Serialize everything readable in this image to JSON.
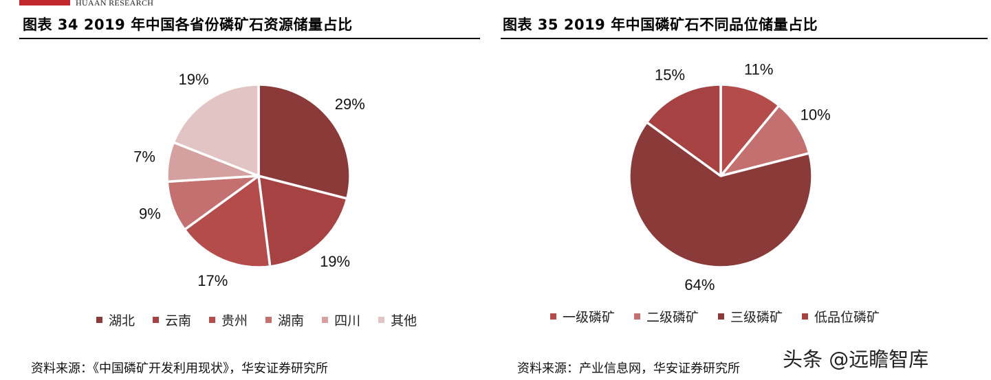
{
  "header": {
    "brand": "HUAAN RESEARCH"
  },
  "colors": {
    "rule": "#000000"
  },
  "charts": [
    {
      "title": "图表 34 2019 年中国各省份磷矿石资源储量占比",
      "source": "资料来源：《中国磷矿开发利用现状》，华安证券研究所"
    },
    {
      "title": "图表 35 2019 年中国磷矿石不同品位储量占比",
      "source": "资料来源：产业信息网，华安证券研究所"
    }
  ],
  "watermark": "头条 @远瞻智库",
  "chart_data": [
    {
      "type": "pie",
      "categories": [
        "湖北",
        "云南",
        "贵州",
        "湖南",
        "四川",
        "其他"
      ],
      "values": [
        29,
        19,
        17,
        9,
        7,
        19
      ],
      "labels": [
        "29%",
        "19%",
        "17%",
        "9%",
        "7%",
        "19%"
      ],
      "colors": [
        "#8b3a3a",
        "#a64242",
        "#b54c4c",
        "#c47070",
        "#d4a0a0",
        "#e3c4c4"
      ],
      "legend_position": "bottom"
    },
    {
      "type": "pie",
      "categories": [
        "一级磷矿",
        "二级磷矿",
        "三级磷矿",
        "低品位磷矿"
      ],
      "values": [
        11,
        10,
        64,
        15
      ],
      "labels": [
        "11%",
        "10%",
        "64%",
        "15%"
      ],
      "colors": [
        "#b54c4c",
        "#c47070",
        "#8b3a3a",
        "#a64242"
      ],
      "legend_position": "bottom"
    }
  ]
}
